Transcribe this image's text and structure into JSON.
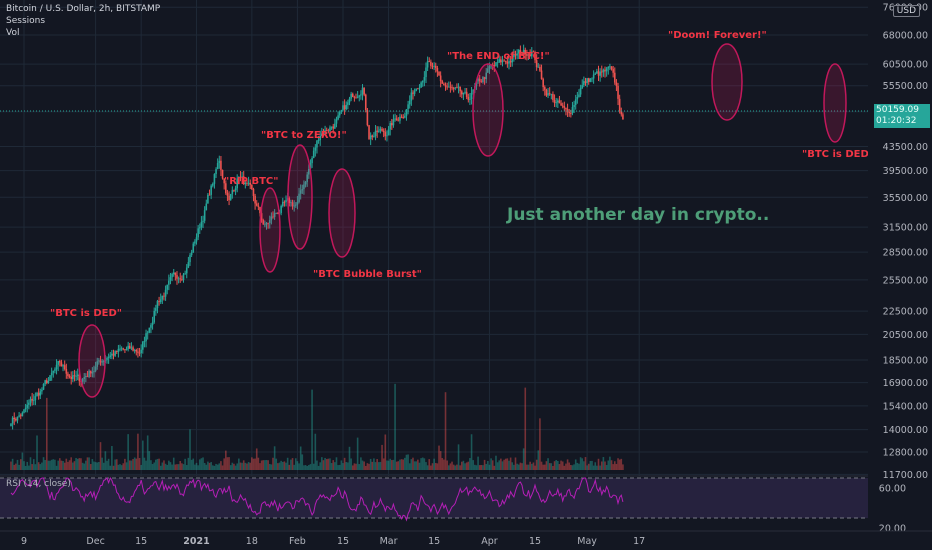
{
  "header": {
    "symbol": "Bitcoin / U.S. Dollar, 2h, BITSTAMP",
    "sessions": "Sessions",
    "vol": "Vol",
    "currency_badge": "USD",
    "last_price": "50159.09",
    "countdown": "01:20:32",
    "rsi_label": "RSI (14, close)"
  },
  "colors": {
    "background": "#131722",
    "up": "#26a69a",
    "down": "#ef5350",
    "rsi_line": "#b41fb6",
    "annotation": "#f23645",
    "headline": "#4e9e78"
  },
  "chart_data": [
    {
      "type": "line",
      "title": "Bitcoin / U.S. Dollar, 2h, BITSTAMP",
      "scale": "log",
      "x_ticks": [
        "9",
        "Dec",
        "15",
        "2021",
        "18",
        "Feb",
        "15",
        "Mar",
        "15",
        "Apr",
        "15",
        "May",
        "17"
      ],
      "y_ticks": [
        11700,
        12800,
        14000,
        15400,
        16900,
        18500,
        20500,
        22500,
        25500,
        28500,
        31500,
        35500,
        39500,
        43500,
        50000,
        55500,
        60500,
        68000,
        76000
      ],
      "x": [
        "2020-11-09",
        "2020-11-20",
        "2020-11-26",
        "2020-12-05",
        "2020-12-15",
        "2020-12-20",
        "2020-12-29",
        "2021-01-03",
        "2021-01-08",
        "2021-01-11",
        "2021-01-14",
        "2021-01-17",
        "2021-01-22",
        "2021-01-27",
        "2021-02-01",
        "2021-02-08",
        "2021-02-14",
        "2021-02-21",
        "2021-02-23",
        "2021-02-28",
        "2021-03-06",
        "2021-03-13",
        "2021-03-17",
        "2021-03-25",
        "2021-04-01",
        "2021-04-14",
        "2021-04-18",
        "2021-04-25",
        "2021-04-29",
        "2021-05-03",
        "2021-05-08",
        "2021-05-10",
        "2021-05-12"
      ],
      "series": [
        {
          "values": [
            15000,
            18000,
            17000,
            19000,
            19200,
            23500,
            27000,
            33000,
            41000,
            35000,
            39000,
            36500,
            31500,
            34000,
            34500,
            46000,
            48500,
            56500,
            46000,
            46000,
            50500,
            61000,
            56000,
            52000,
            59000,
            64500,
            55000,
            49000,
            55500,
            57500,
            58500,
            54500,
            47500
          ]
        }
      ],
      "annotations": [
        "\"BTC is DED\"",
        "\"RIP BTC\"",
        "\"BTC to ZERO!\"",
        "\"BTC Bubble Burst\"",
        "\"The END of BTC!\"",
        "\"Doom!  Forever!\"",
        "\"BTC is DED\"",
        "Just another day in crypto.."
      ]
    },
    {
      "type": "line",
      "title": "RSI (14, close)",
      "y_ticks": [
        20.0,
        60.0
      ],
      "bands": [
        30,
        70
      ],
      "ylim": [
        15,
        80
      ]
    }
  ]
}
